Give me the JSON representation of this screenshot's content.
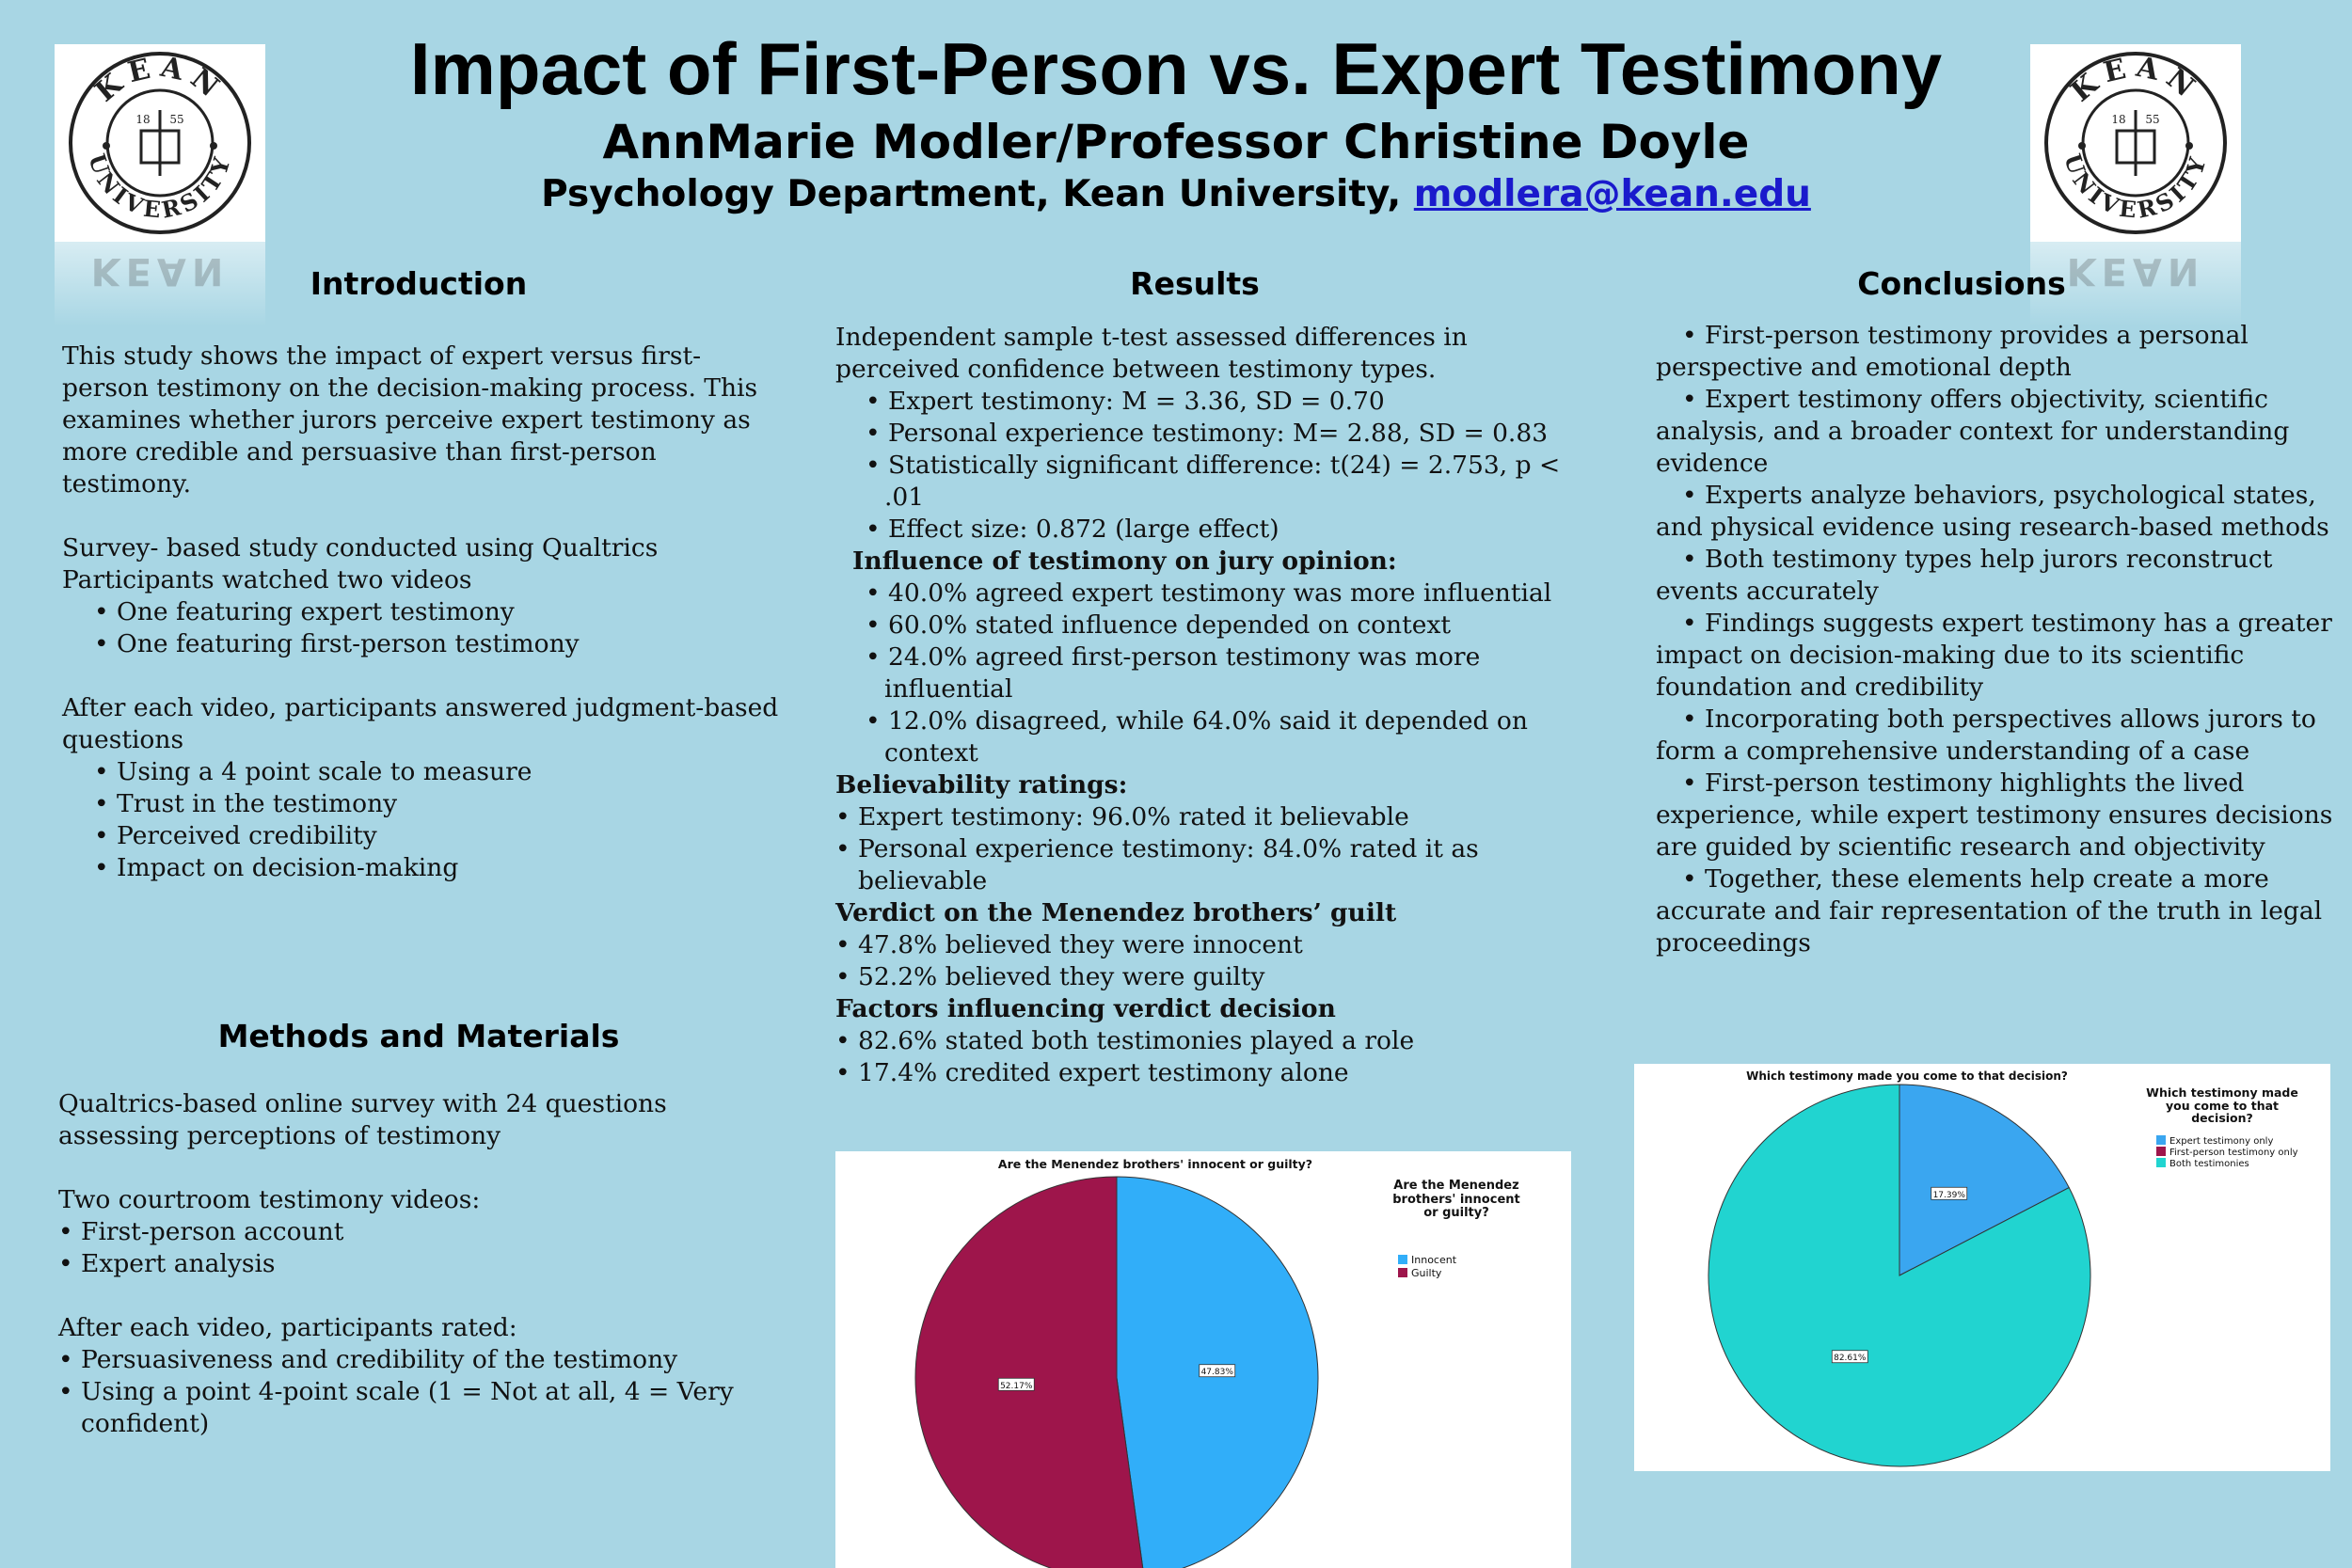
{
  "header": {
    "title": "Impact of First-Person vs. Expert Testimony",
    "authors": "AnnMarie Modler/Professor Christine Doyle",
    "department": "Psychology Department, Kean University,",
    "email": "modlera@kean.edu"
  },
  "logo": {
    "top_text": "KEAN",
    "bottom_text": "UNIVERSITY",
    "year_left": "18",
    "year_right": "55"
  },
  "introduction": {
    "heading": "Introduction",
    "para1": "This study shows the impact of expert versus first-person testimony on the decision-making process. This examines whether jurors perceive expert testimony as more credible and persuasive than first-person testimony.",
    "line1": "Survey- based study conducted using Qualtrics",
    "line2": "Participants watched two videos",
    "bullets1": [
      "• One featuring expert testimony",
      "• One featuring first-person testimony"
    ],
    "para2": "After each video, participants answered judgment-based questions",
    "bullets2": [
      "• Using a 4 point scale to measure",
      "• Trust in the testimony",
      "• Perceived credibility",
      "• Impact on decision-making"
    ]
  },
  "methods": {
    "heading": "Methods and Materials",
    "para1": "Qualtrics-based online survey with 24 questions assessing perceptions of testimony",
    "para2": "Two courtroom testimony videos:",
    "bullets1": [
      "• First-person account",
      "• Expert analysis"
    ],
    "para3": "After each video, participants rated:",
    "bullets2": [
      "• Persuasiveness and credibility of the testimony",
      "• Using a point 4-point scale (1 = Not at all, 4 = Very confident)"
    ]
  },
  "results": {
    "heading": "Results",
    "intro": "Independent sample t-test assessed differences in perceived confidence between testimony types.",
    "ttest": [
      "• Expert testimony: M = 3.36, SD = 0.70",
      "• Personal experience testimony: M= 2.88, SD = 0.83",
      "• Statistically significant difference: t(24) = 2.753, p < .01",
      "• Effect size: 0.872 (large effect)"
    ],
    "influence_heading": "Influence of testimony on jury opinion:",
    "influence": [
      "• 40.0% agreed expert testimony was more influential",
      "• 60.0% stated influence depended on context",
      "• 24.0% agreed first-person testimony was more influential",
      "• 12.0% disagreed, while 64.0% said it depended on context"
    ],
    "believe_heading": "Believability ratings:",
    "believe": [
      "• Expert testimony: 96.0% rated it believable",
      "• Personal experience testimony: 84.0% rated it as believable"
    ],
    "verdict_heading": "Verdict on the Menendez brothers’ guilt",
    "verdict": [
      "• 47.8% believed they were innocent",
      "• 52.2% believed they were guilty"
    ],
    "factors_heading": "Factors influencing verdict decision",
    "factors": [
      "• 82.6% stated both testimonies played a role",
      "• 17.4% credited expert testimony alone"
    ]
  },
  "conclusions": {
    "heading": "Conclusions",
    "bullets": [
      "• First-person testimony provides a personal perspective and emotional depth",
      "• Expert testimony offers objectivity, scientific analysis, and a broader context for understanding evidence",
      "• Experts analyze behaviors, psychological states, and physical evidence using research-based methods",
      "• Both testimony types help jurors reconstruct events accurately",
      "• Findings suggests expert testimony has a greater impact on decision-making due to its scientific foundation and credibility",
      "• Incorporating both perspectives allows jurors to form a comprehensive understanding of a case",
      "• First-person testimony highlights the lived experience, while expert testimony ensures decisions are guided by scientific research and objectivity",
      "• Together, these elements help create a more accurate and fair representation of the truth in legal proceedings"
    ]
  },
  "colors": {
    "background": "#a8d6e4",
    "innocent": "#31aef9",
    "guilty": "#9e154b",
    "expert_only": "#3aa6f0",
    "first_person_only": "#9e154b",
    "both": "#21d4d0"
  },
  "chart_data": [
    {
      "type": "pie",
      "title": "Are the Menendez brothers' innocent or guilty?",
      "legend_title": "Are the Menendez brothers' innocent or guilty?",
      "legend_position": "right",
      "series": [
        {
          "name": "Innocent",
          "value": 47.83,
          "label": "47.83%",
          "color": "#31aef9"
        },
        {
          "name": "Guilty",
          "value": 52.17,
          "label": "52.17%",
          "color": "#9e154b"
        }
      ]
    },
    {
      "type": "pie",
      "title": "Which testimony made you come to that decision?",
      "legend_title": "Which testimony made you come to that decision?",
      "legend_position": "right",
      "series": [
        {
          "name": "Expert testimony only",
          "value": 17.39,
          "label": "17.39%",
          "color": "#3aa6f0"
        },
        {
          "name": "First-person testimony only",
          "value": 0,
          "label": "",
          "color": "#9e154b"
        },
        {
          "name": "Both testimonies",
          "value": 82.61,
          "label": "82.61%",
          "color": "#21d4d0"
        }
      ]
    }
  ]
}
